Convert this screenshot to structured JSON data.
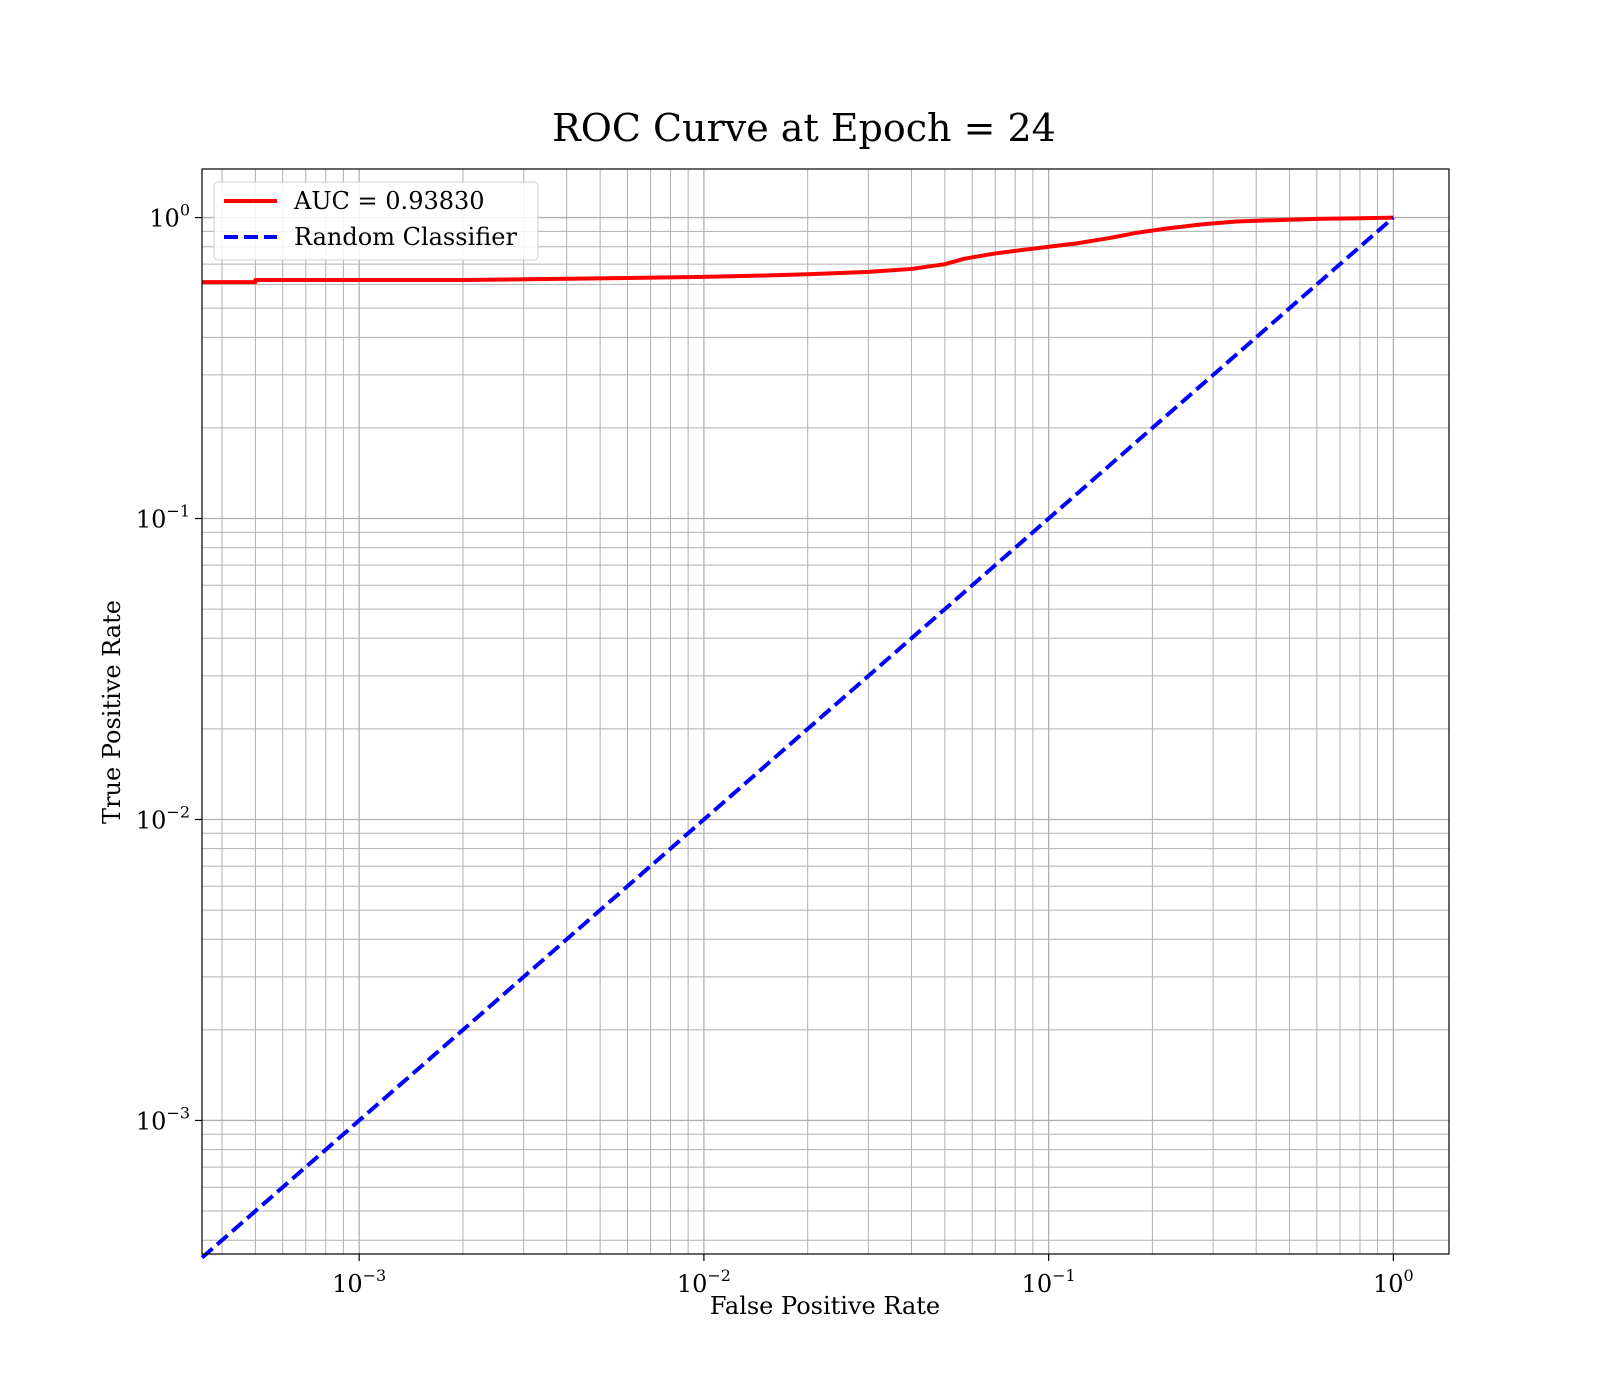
{
  "chart_data": {
    "type": "line",
    "title": "ROC Curve at Epoch = 24",
    "xlabel": "False Positive Rate",
    "ylabel": "True Positive Rate",
    "xscale": "log",
    "yscale": "log",
    "xlim": [
      0.00035,
      1.45
    ],
    "ylim": [
      0.00036,
      1.45
    ],
    "grid": true,
    "grid_which": "both",
    "legend_position": "upper-left",
    "x_ticks": [
      {
        "value": 0.001,
        "base": "10",
        "exp": "−3"
      },
      {
        "value": 0.01,
        "base": "10",
        "exp": "−2"
      },
      {
        "value": 0.1,
        "base": "10",
        "exp": "−1"
      },
      {
        "value": 1,
        "base": "10",
        "exp": "0"
      }
    ],
    "y_ticks": [
      {
        "value": 0.001,
        "base": "10",
        "exp": "−3"
      },
      {
        "value": 0.01,
        "base": "10",
        "exp": "−2"
      },
      {
        "value": 0.1,
        "base": "10",
        "exp": "−1"
      },
      {
        "value": 1,
        "base": "10",
        "exp": "0"
      }
    ],
    "series": [
      {
        "name": "AUC = 0.93830",
        "color": "#ff0000",
        "style": "solid",
        "x": [
          0.00035,
          0.0005,
          0.0005,
          0.001,
          0.002,
          0.0035,
          0.006,
          0.01,
          0.015,
          0.02,
          0.03,
          0.04,
          0.05,
          0.057,
          0.07,
          0.08,
          0.1,
          0.12,
          0.15,
          0.18,
          0.22,
          0.28,
          0.35,
          0.45,
          0.6,
          0.8,
          1.0
        ],
        "y": [
          0.61,
          0.61,
          0.62,
          0.62,
          0.62,
          0.625,
          0.63,
          0.635,
          0.642,
          0.648,
          0.66,
          0.675,
          0.7,
          0.73,
          0.76,
          0.775,
          0.8,
          0.82,
          0.855,
          0.89,
          0.92,
          0.95,
          0.97,
          0.98,
          0.99,
          0.995,
          1.0
        ]
      },
      {
        "name": "Random Classifier",
        "color": "#0000ff",
        "style": "dashed",
        "x": [
          0.00035,
          1.0
        ],
        "y": [
          0.00035,
          1.0
        ]
      }
    ]
  }
}
